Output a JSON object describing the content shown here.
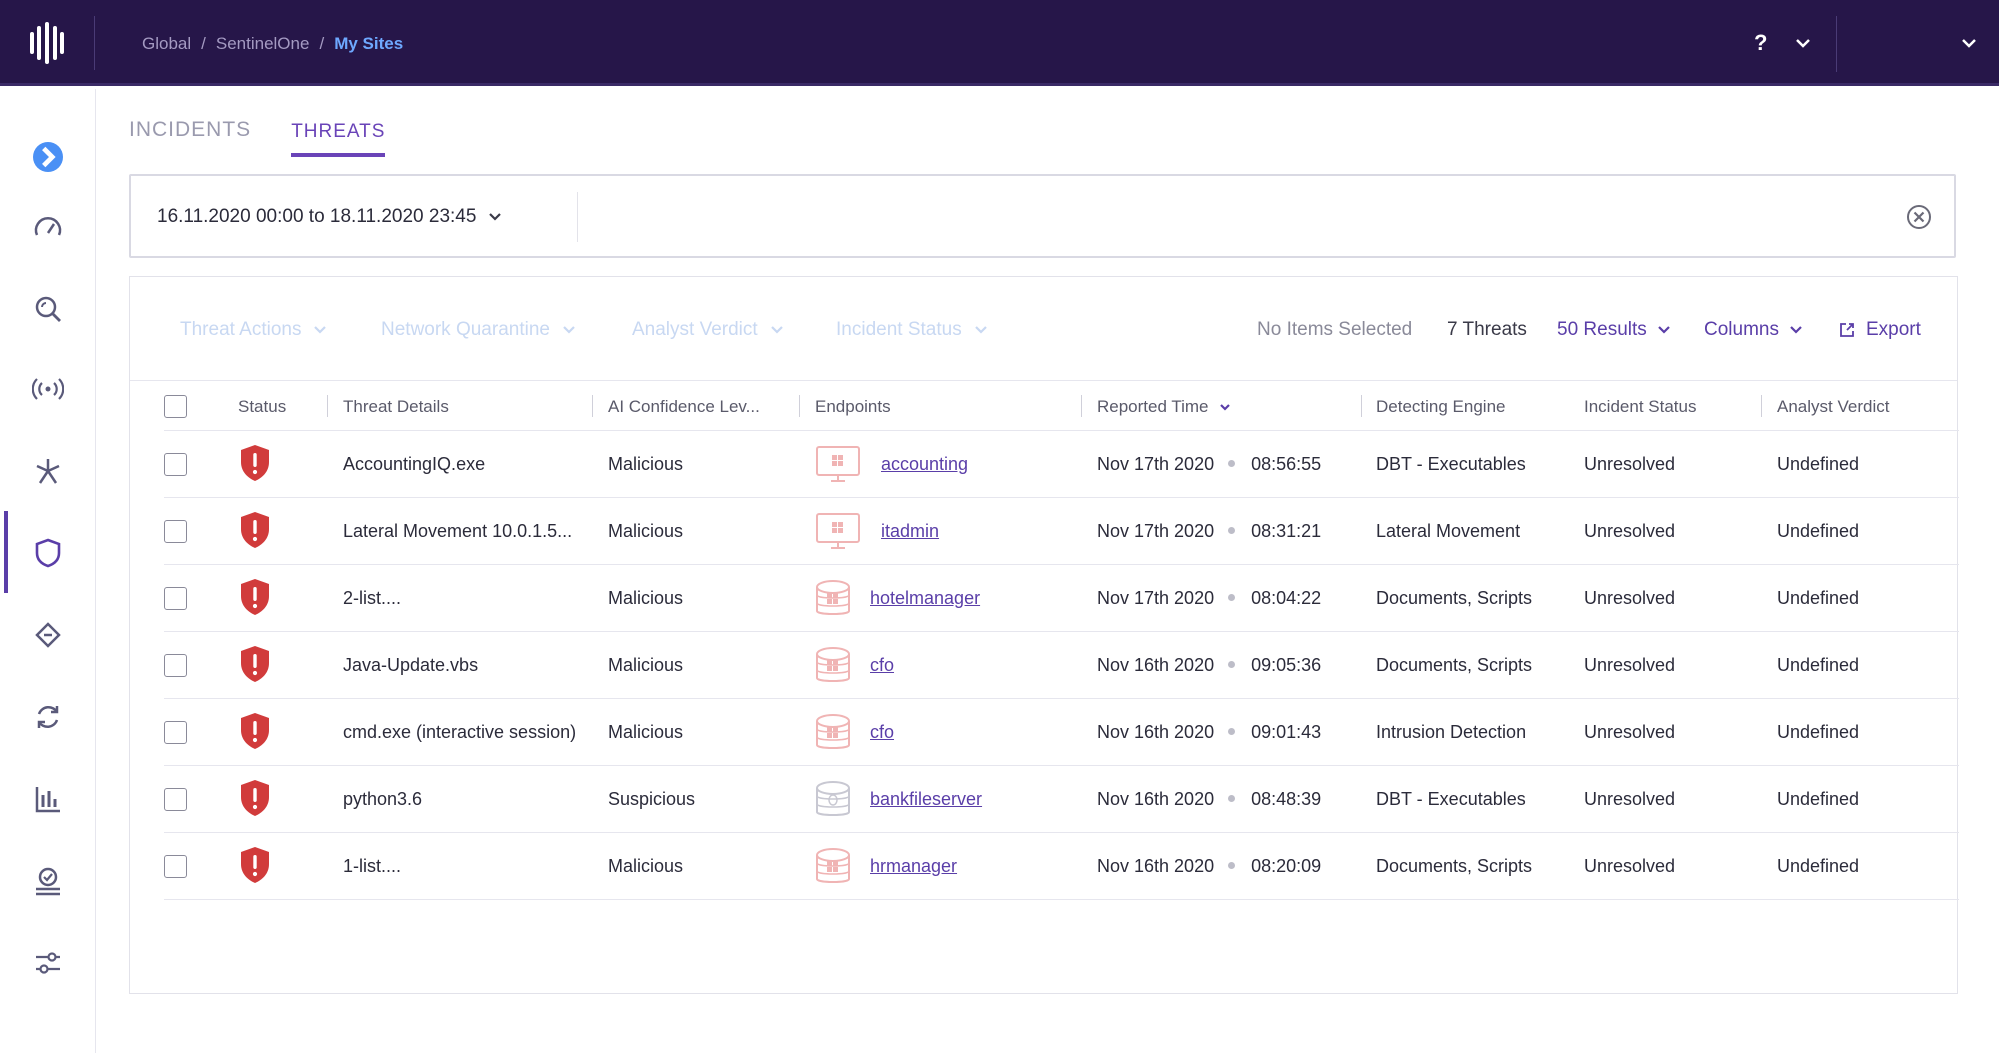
{
  "breadcrumb": {
    "items": [
      "Global",
      "SentinelOne"
    ],
    "separator": "/",
    "current": "My Sites"
  },
  "topbar": {
    "help_label": "?"
  },
  "tabs": [
    {
      "label": "INCIDENTS",
      "active": false
    },
    {
      "label": "THREATS",
      "active": true
    }
  ],
  "filter": {
    "date_range": "16.11.2020 00:00 to 18.11.2020 23:45"
  },
  "toolbar": {
    "threat_actions": "Threat Actions",
    "network_quarantine": "Network Quarantine",
    "analyst_verdict": "Analyst Verdict",
    "incident_status": "Incident Status",
    "selection": "No Items Selected",
    "count": "7 Threats",
    "results": "50 Results",
    "columns": "Columns",
    "export": "Export"
  },
  "table": {
    "headers": [
      "Status",
      "Threat Details",
      "AI Confidence Lev...",
      "Endpoints",
      "Reported Time",
      "Detecting Engine",
      "Incident Status",
      "Analyst Verdict"
    ],
    "rows": [
      {
        "threat": "AccountingIQ.exe",
        "confidence": "Malicious",
        "endpoint": "accounting",
        "endpoint_type": "desktop",
        "date": "Nov 17th 2020",
        "time": "08:56:55",
        "engine": "DBT - Executables",
        "incident_status": "Unresolved",
        "verdict": "Undefined"
      },
      {
        "threat": "Lateral Movement 10.0.1.5...",
        "confidence": "Malicious",
        "endpoint": "itadmin",
        "endpoint_type": "desktop",
        "date": "Nov 17th 2020",
        "time": "08:31:21",
        "engine": "Lateral Movement",
        "incident_status": "Unresolved",
        "verdict": "Undefined"
      },
      {
        "threat": "2-list....",
        "confidence": "Malicious",
        "endpoint": "hotelmanager",
        "endpoint_type": "server-windows",
        "date": "Nov 17th 2020",
        "time": "08:04:22",
        "engine": "Documents, Scripts",
        "incident_status": "Unresolved",
        "verdict": "Undefined"
      },
      {
        "threat": "Java-Update.vbs",
        "confidence": "Malicious",
        "endpoint": "cfo",
        "endpoint_type": "server-windows",
        "date": "Nov 16th 2020",
        "time": "09:05:36",
        "engine": "Documents, Scripts",
        "incident_status": "Unresolved",
        "verdict": "Undefined"
      },
      {
        "threat": "cmd.exe (interactive session)",
        "confidence": "Malicious",
        "endpoint": "cfo",
        "endpoint_type": "server-windows",
        "date": "Nov 16th 2020",
        "time": "09:01:43",
        "engine": "Intrusion Detection",
        "incident_status": "Unresolved",
        "verdict": "Undefined"
      },
      {
        "threat": "python3.6",
        "confidence": "Suspicious",
        "endpoint": "bankfileserver",
        "endpoint_type": "server-linux",
        "date": "Nov 16th 2020",
        "time": "08:48:39",
        "engine": "DBT - Executables",
        "incident_status": "Unresolved",
        "verdict": "Undefined"
      },
      {
        "threat": "1-list....",
        "confidence": "Malicious",
        "endpoint": "hrmanager",
        "endpoint_type": "server-windows",
        "date": "Nov 16th 2020",
        "time": "08:20:09",
        "engine": "Documents, Scripts",
        "incident_status": "Unresolved",
        "verdict": "Undefined"
      }
    ]
  },
  "colors": {
    "topbar": "#261649",
    "accent": "#5a3ea8",
    "threat_red": "#d13b3b",
    "link_blue": "#6ea8ff"
  }
}
